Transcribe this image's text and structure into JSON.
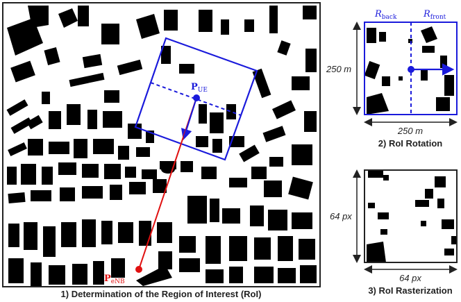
{
  "panel1": {
    "caption": "1) Determination of the Region of Interest (RoI)",
    "ue_label": "P",
    "ue_sub": "UE",
    "enb_label": "P",
    "enb_sub": "eNB"
  },
  "panel2": {
    "caption": "2) RoI Rotation",
    "side_label": "250 m",
    "bottom_label": "250 m",
    "r_back": "R",
    "r_back_sub": "back",
    "r_front": "R",
    "r_front_sub": "front"
  },
  "panel3": {
    "caption": "3) RoI Rasterization",
    "side_label": "64 px",
    "bottom_label": "64 px"
  },
  "colors": {
    "roi_blue": "#1a1adb",
    "los_red": "#e01010",
    "building": "#000000",
    "text": "#222222"
  }
}
